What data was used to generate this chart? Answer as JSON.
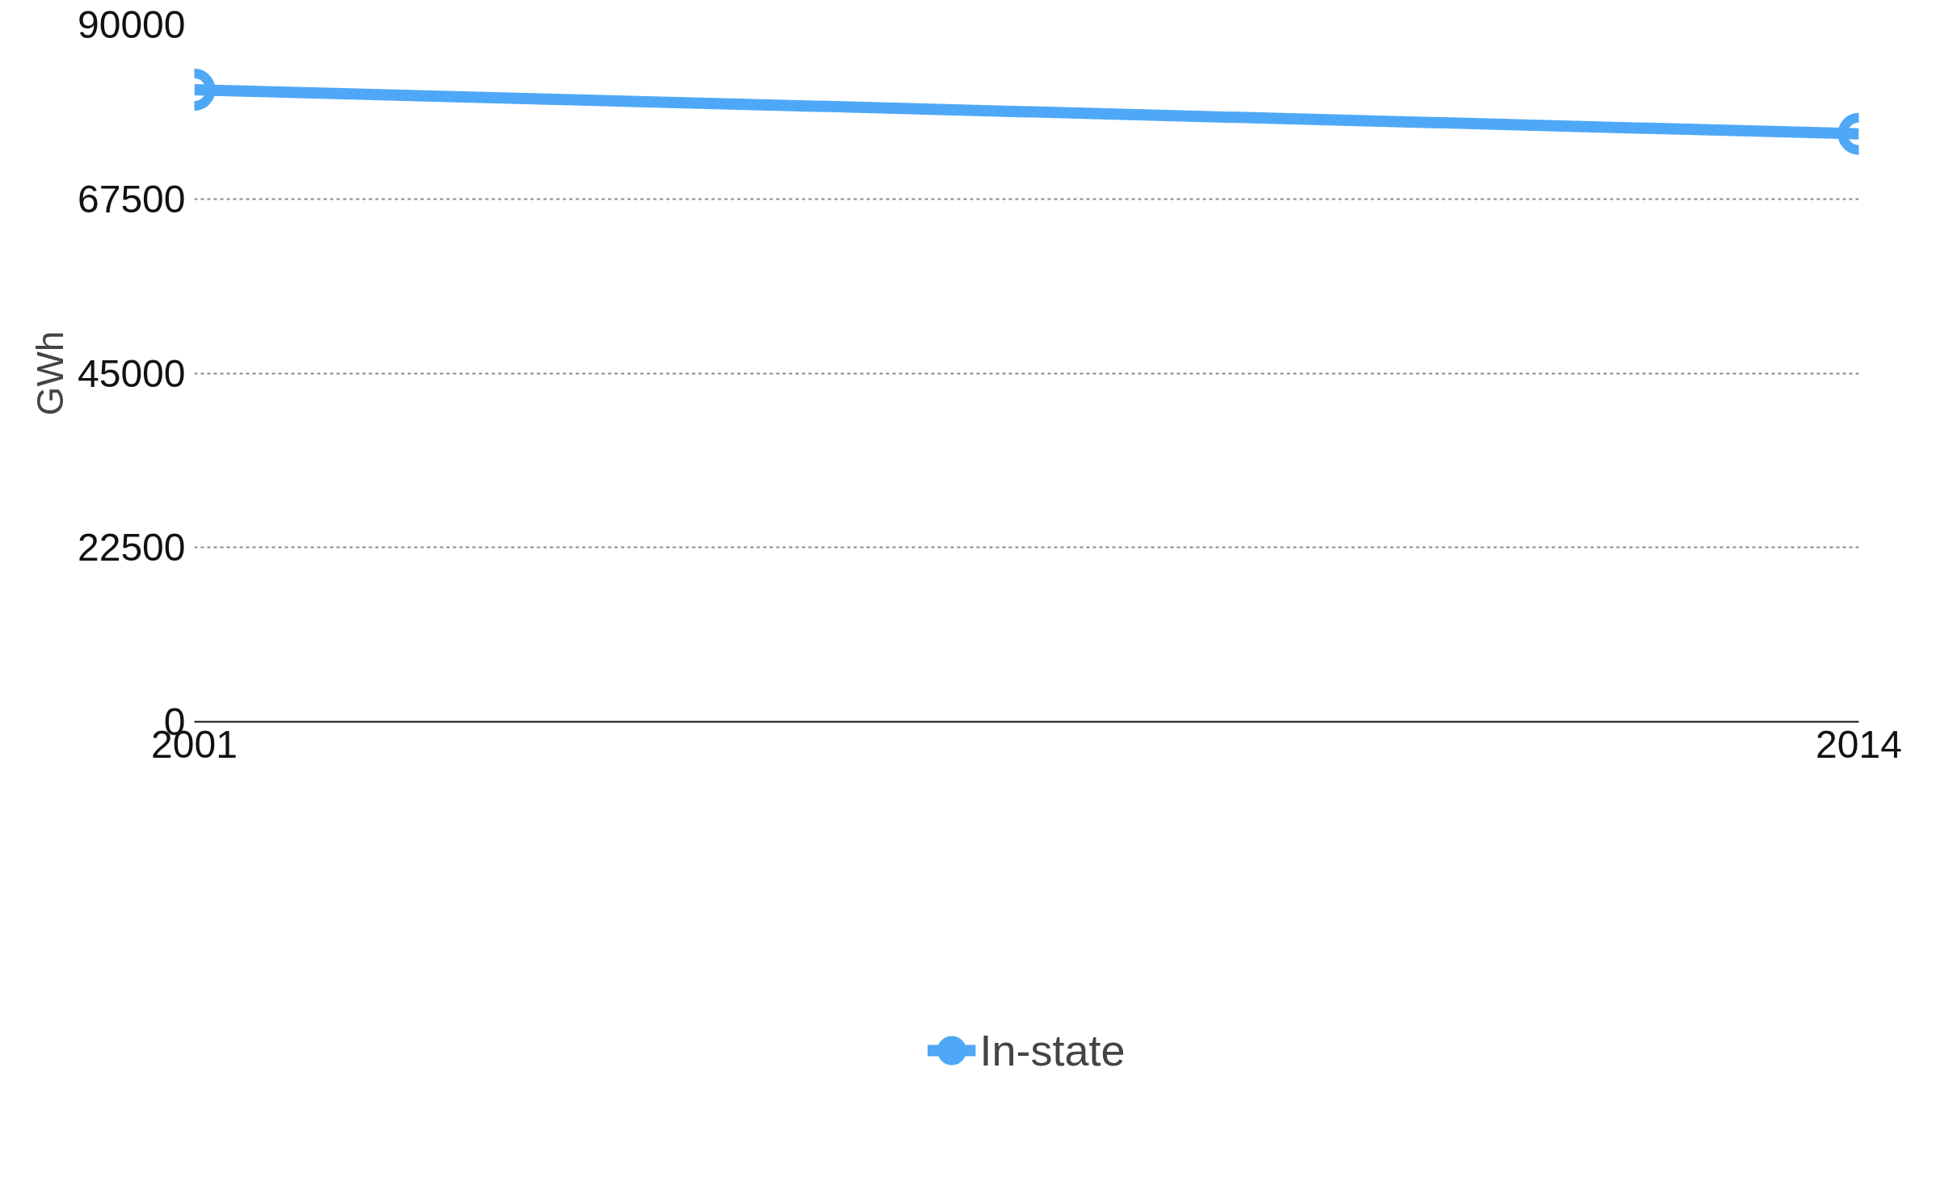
{
  "chart_data": {
    "type": "line",
    "ylabel": "GWh",
    "x": [
      2001,
      2014
    ],
    "series": [
      {
        "name": "In-state",
        "color": "#4fa8f7",
        "values": [
          81600,
          75900
        ]
      }
    ],
    "xlim": [
      2001,
      2014
    ],
    "xticks": [
      2001,
      2014
    ],
    "ylim": [
      0,
      90000
    ],
    "yticks": [
      0,
      22500,
      45000,
      67500,
      90000
    ],
    "grid": "y",
    "legend": "bottom",
    "marker": "circle",
    "line_style": "solid"
  }
}
